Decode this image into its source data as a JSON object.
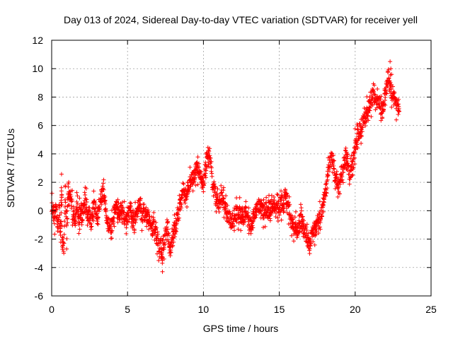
{
  "chart_data": {
    "type": "scatter",
    "title": "Day 013 of 2024, Sidereal Day-to-day VTEC variation (SDTVAR) for receiver yell",
    "xlabel": "GPS time / hours",
    "ylabel": "SDTVAR / TECUs",
    "xlim": [
      0,
      25
    ],
    "ylim": [
      -6,
      12
    ],
    "xticks": [
      0,
      5,
      10,
      15,
      20,
      25
    ],
    "yticks": [
      -6,
      -4,
      -2,
      0,
      2,
      4,
      6,
      8,
      10,
      12
    ],
    "grid": true,
    "marker": "+",
    "color": "#ff0000",
    "series": [
      {
        "name": "SDTVAR",
        "x": [
          0.0,
          0.1,
          0.2,
          0.3,
          0.4,
          0.5,
          0.6,
          0.65,
          0.7,
          0.8,
          0.9,
          1.0,
          1.1,
          1.2,
          1.3,
          1.4,
          1.5,
          1.6,
          1.7,
          1.8,
          1.9,
          2.0,
          2.2,
          2.4,
          2.6,
          2.8,
          3.0,
          3.2,
          3.4,
          3.5,
          3.6,
          3.8,
          4.0,
          4.2,
          4.4,
          4.6,
          4.8,
          5.0,
          5.2,
          5.4,
          5.6,
          5.8,
          6.0,
          6.2,
          6.4,
          6.6,
          6.8,
          7.0,
          7.1,
          7.2,
          7.3,
          7.4,
          7.5,
          7.6,
          7.8,
          8.0,
          8.2,
          8.4,
          8.6,
          8.8,
          9.0,
          9.2,
          9.4,
          9.6,
          9.8,
          10.0,
          10.2,
          10.4,
          10.6,
          10.8,
          11.0,
          11.2,
          11.4,
          11.6,
          11.8,
          12.0,
          12.2,
          12.4,
          12.6,
          12.8,
          13.0,
          13.2,
          13.4,
          13.6,
          13.8,
          14.0,
          14.2,
          14.4,
          14.6,
          14.8,
          15.0,
          15.2,
          15.4,
          15.6,
          15.8,
          16.0,
          16.2,
          16.4,
          16.6,
          16.8,
          17.0,
          17.2,
          17.4,
          17.6,
          17.8,
          18.0,
          18.2,
          18.4,
          18.6,
          18.8,
          19.0,
          19.2,
          19.4,
          19.6,
          19.8,
          20.0,
          20.2,
          20.4,
          20.6,
          20.8,
          21.0,
          21.2,
          21.4,
          21.6,
          21.8,
          22.0,
          22.2,
          22.4,
          22.6,
          22.8,
          22.9
        ],
        "y": [
          0.4,
          0.1,
          -0.5,
          0.3,
          -1.0,
          0.2,
          -1.8,
          2.1,
          -2.3,
          -2.6,
          1.2,
          -1.5,
          1.4,
          1.2,
          0.9,
          -0.6,
          -0.4,
          -0.3,
          0.5,
          -0.5,
          0.0,
          -0.4,
          0.6,
          -0.2,
          -0.8,
          0.3,
          -0.5,
          0.6,
          1.4,
          1.0,
          -0.5,
          -1.2,
          -1.0,
          0.6,
          -0.3,
          0.4,
          -0.6,
          -0.7,
          0.0,
          -1.1,
          -0.2,
          0.9,
          -0.6,
          0.0,
          -0.3,
          -1.0,
          -1.2,
          -2.0,
          -2.8,
          -2.4,
          -3.0,
          -2.2,
          -1.8,
          -1.1,
          -2.8,
          -2.0,
          -0.8,
          0.0,
          1.3,
          1.0,
          1.6,
          2.2,
          2.5,
          3.0,
          2.4,
          1.8,
          3.5,
          3.8,
          2.0,
          1.0,
          0.4,
          0.8,
          0.2,
          -0.4,
          -0.5,
          -0.8,
          0.1,
          -0.2,
          -0.4,
          -0.1,
          -1.0,
          -0.8,
          -0.3,
          0.5,
          0.3,
          -0.3,
          0.2,
          0.1,
          0.5,
          0.0,
          0.3,
          0.6,
          0.9,
          0.4,
          -0.8,
          -1.2,
          -1.6,
          -0.7,
          -1.2,
          -1.8,
          -2.3,
          -1.6,
          -1.0,
          -0.8,
          0.0,
          1.0,
          2.5,
          3.8,
          2.8,
          2.0,
          1.5,
          3.0,
          4.0,
          2.5,
          3.0,
          4.5,
          5.5,
          5.8,
          6.5,
          7.0,
          7.8,
          8.2,
          8.0,
          7.5,
          7.0,
          8.5,
          9.5,
          8.0,
          7.8,
          7.2,
          7.0
        ],
        "outliers_x": [
          7.3,
          22.3,
          22.35,
          22.4
        ],
        "outliers_y": [
          -4.3,
          10.5,
          10.0,
          9.6
        ]
      }
    ]
  }
}
